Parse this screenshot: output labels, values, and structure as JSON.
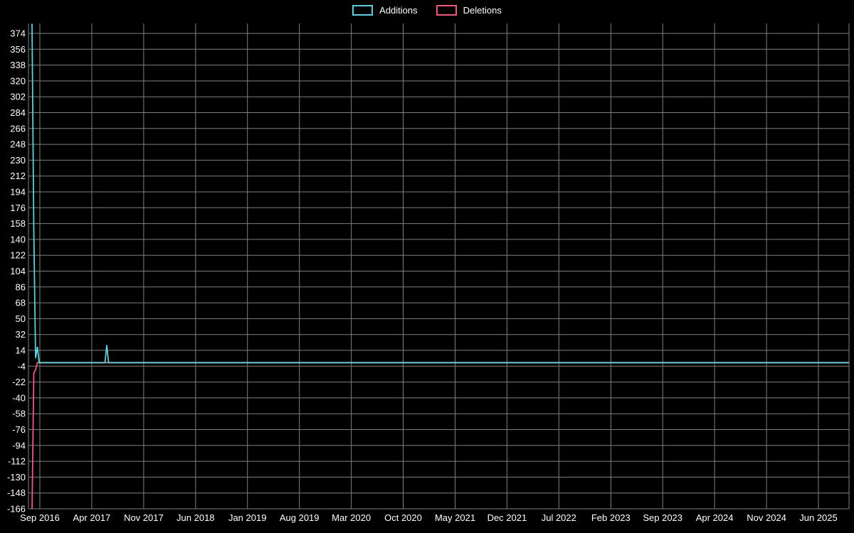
{
  "chart_data": {
    "type": "line",
    "title": "",
    "background_color": "#000000",
    "grid": true,
    "grid_color": "#7f7f7f",
    "text_color": "#ffffff",
    "legend_position": "top-center",
    "x_axis": {
      "tick_labels": [
        "Sep 2016",
        "Apr 2017",
        "Nov 2017",
        "Jun 2018",
        "Jan 2019",
        "Aug 2019",
        "Mar 2020",
        "Oct 2020",
        "May 2021",
        "Dec 2021",
        "Jul 2022",
        "Feb 2023",
        "Sep 2023",
        "Apr 2024",
        "Nov 2024",
        "Jun 2025"
      ]
    },
    "y_axis": {
      "min": -166,
      "max": 374,
      "step": 18,
      "tick_labels": [
        374,
        356,
        338,
        320,
        302,
        284,
        266,
        248,
        230,
        212,
        194,
        176,
        158,
        140,
        122,
        104,
        86,
        68,
        50,
        32,
        14,
        -4,
        -22,
        -40,
        -58,
        -76,
        -94,
        -112,
        -130,
        -148,
        -166
      ]
    },
    "weeks_total": 460,
    "default_value": 0,
    "series": [
      {
        "name": "Additions",
        "color": "#5fd0da",
        "points": [
          {
            "week": 0,
            "value": 385
          },
          {
            "week": 1,
            "value": 150
          },
          {
            "week": 2,
            "value": 5
          },
          {
            "week": 3,
            "value": 18
          },
          {
            "week": 42,
            "value": 20
          }
        ]
      },
      {
        "name": "Deletions",
        "color": "#f2597f",
        "points": [
          {
            "week": 0,
            "value": -170
          },
          {
            "week": 1,
            "value": -12
          },
          {
            "week": 2,
            "value": -8
          }
        ]
      }
    ],
    "notes": "All unlisted weeks are 0; first-week spikes are clipped by the plot area (top tick 374, bottom tick -166)."
  }
}
